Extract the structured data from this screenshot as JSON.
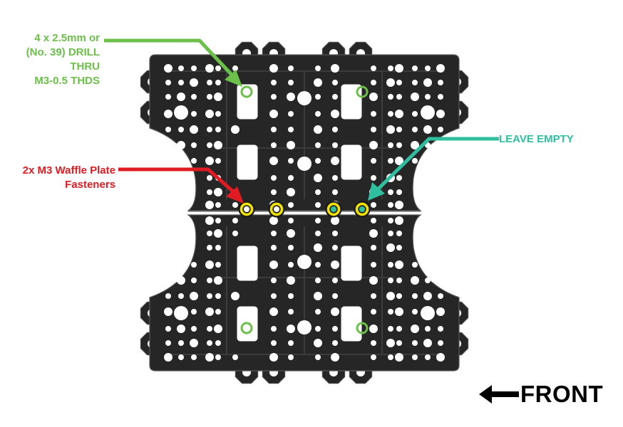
{
  "colors": {
    "plate": "#262626",
    "plate_edge": "#555555",
    "hole": "#ffffff",
    "drill": "#6cc04a",
    "fastener": "#e11b22",
    "leave_empty": "#2fbf9f",
    "washer": "#f4e300",
    "text_front": "#000000"
  },
  "callouts": {
    "drill": {
      "lines": [
        "4 x 2.5mm or",
        "(No. 39) DRILL",
        "THRU",
        "M3-0.5 THDS"
      ],
      "color": "#6cc04a"
    },
    "fasteners": {
      "lines": [
        "2x M3 Waffle Plate",
        "Fasteners"
      ],
      "color": "#e11b22"
    },
    "leave_empty": {
      "text": "LEAVE EMPTY",
      "color": "#2fbf9f"
    }
  },
  "front": {
    "text": "FRONT",
    "icon": "left-arrow-icon"
  }
}
